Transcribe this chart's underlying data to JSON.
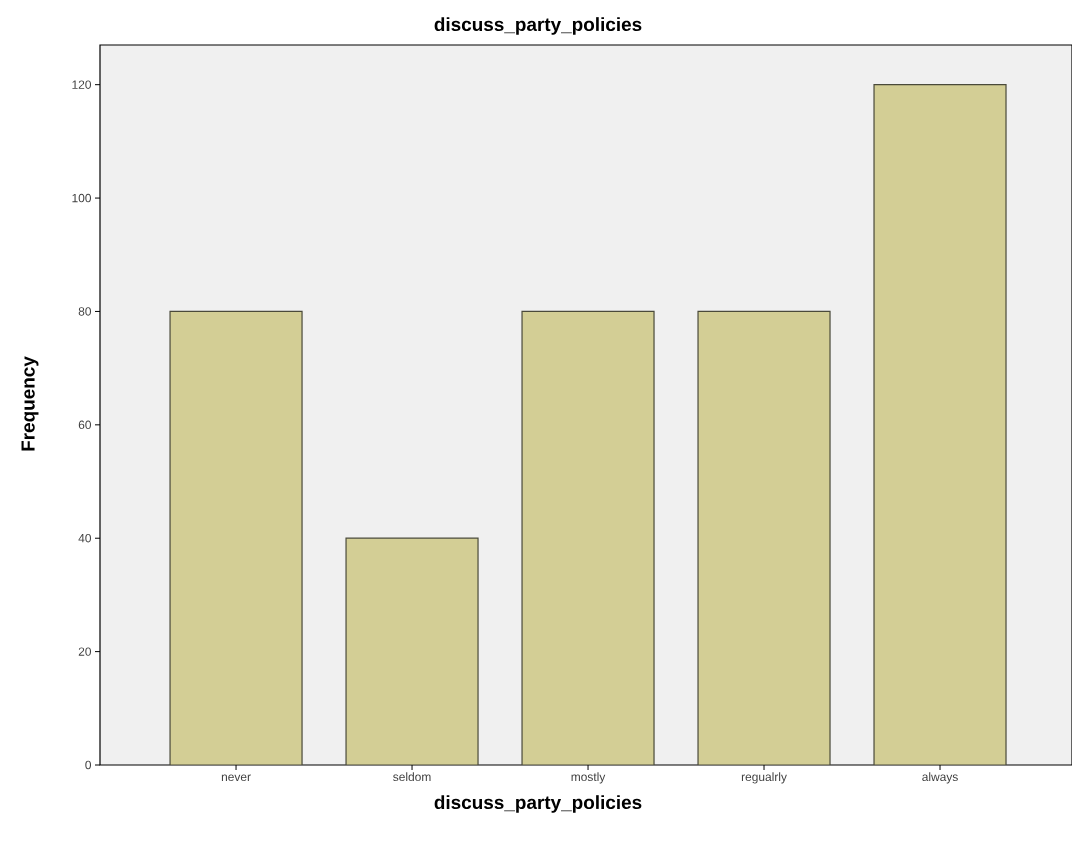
{
  "chart_data": {
    "type": "bar",
    "title": "discuss_party_policies",
    "xlabel": "discuss_party_policies",
    "ylabel": "Frequency",
    "categories": [
      "never",
      "seldom",
      "mostly",
      "regualrly",
      "always"
    ],
    "values": [
      80,
      40,
      80,
      80,
      120
    ],
    "color": "#d3ce95",
    "ylim": [
      0,
      127
    ],
    "yticks": [
      0,
      20,
      40,
      60,
      80,
      100,
      120
    ],
    "grid": false
  }
}
